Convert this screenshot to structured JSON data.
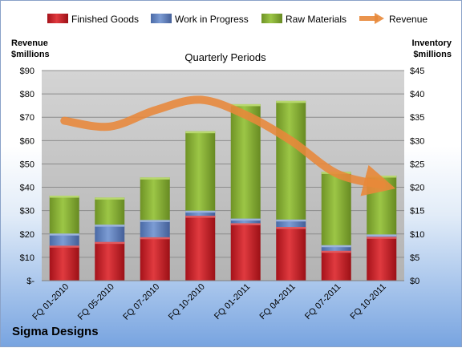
{
  "company": "Sigma Designs",
  "chart_data": {
    "type": "bar",
    "stacked": true,
    "subtitle": "Quarterly Periods",
    "categories": [
      "FQ 01-2010",
      "FQ 05-2010",
      "FQ 07-2010",
      "FQ 10-2010",
      "FQ 01-2011",
      "FQ 04-2011",
      "FQ 07-2011",
      "FQ 10-2011"
    ],
    "series": [
      {
        "name": "Finished Goods",
        "axis": "right",
        "color": "#c0191f",
        "values": [
          7.5,
          8.3,
          9.3,
          13.9,
          12.3,
          11.5,
          6.4,
          9.4
        ]
      },
      {
        "name": "Work in Progress",
        "axis": "right",
        "color": "#5b7fbf",
        "values": [
          2.6,
          3.7,
          3.7,
          1.1,
          1.0,
          1.6,
          1.2,
          0.5
        ]
      },
      {
        "name": "Raw Materials",
        "axis": "right",
        "color": "#8cb336",
        "values": [
          8.1,
          5.8,
          9.1,
          17.0,
          24.5,
          25.4,
          15.7,
          12.6
        ]
      },
      {
        "name": "Revenue",
        "axis": "left",
        "color": "#e8883a",
        "values": [
          68.5,
          66,
          73,
          77.5,
          71,
          60,
          46,
          41
        ]
      }
    ],
    "left_axis": {
      "title": [
        "Revenue",
        "$millions"
      ],
      "ylim": [
        0,
        90
      ],
      "ticks": [
        "$-",
        "$10",
        "$20",
        "$30",
        "$40",
        "$50",
        "$60",
        "$70",
        "$80",
        "$90"
      ]
    },
    "right_axis": {
      "title": [
        "Inventory",
        "$millions"
      ],
      "ylim": [
        0,
        45
      ],
      "ticks": [
        "$0",
        "$5",
        "$10",
        "$15",
        "$20",
        "$25",
        "$30",
        "$35",
        "$40",
        "$45"
      ]
    },
    "legend": {
      "position": "top",
      "items": [
        "Finished Goods",
        "Work in Progress",
        "Raw Materials",
        "Revenue"
      ]
    },
    "grid": true,
    "colors": {
      "plot_background": "#bfbfbf",
      "grid": "#8c8c8c"
    }
  }
}
